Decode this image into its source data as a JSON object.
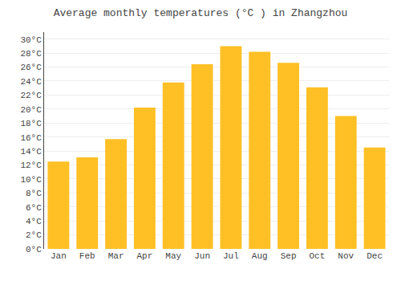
{
  "chart_data": {
    "type": "bar",
    "title": "Average monthly temperatures (°C ) in Zhangzhou",
    "categories": [
      "Jan",
      "Feb",
      "Mar",
      "Apr",
      "May",
      "Jun",
      "Jul",
      "Aug",
      "Sep",
      "Oct",
      "Nov",
      "Dec"
    ],
    "values": [
      12.5,
      13.1,
      15.7,
      20.2,
      23.8,
      26.4,
      29.0,
      28.2,
      26.6,
      23.1,
      19.0,
      14.5
    ],
    "color": "#FFC025",
    "ylim": [
      0,
      31
    ],
    "yticks": [
      {
        "value": 0,
        "label": "0°C"
      },
      {
        "value": 2,
        "label": "2°C"
      },
      {
        "value": 4,
        "label": "4°C"
      },
      {
        "value": 6,
        "label": "6°C"
      },
      {
        "value": 8,
        "label": "8°C"
      },
      {
        "value": 10,
        "label": "10°C"
      },
      {
        "value": 12,
        "label": "12°C"
      },
      {
        "value": 14,
        "label": "14°C"
      },
      {
        "value": 16,
        "label": "16°C"
      },
      {
        "value": 18,
        "label": "18°C"
      },
      {
        "value": 20,
        "label": "20°C"
      },
      {
        "value": 22,
        "label": "22°C"
      },
      {
        "value": 24,
        "label": "24°C"
      },
      {
        "value": 26,
        "label": "26°C"
      },
      {
        "value": 28,
        "label": "28°C"
      },
      {
        "value": 30,
        "label": "30°C"
      }
    ],
    "grid": true
  }
}
